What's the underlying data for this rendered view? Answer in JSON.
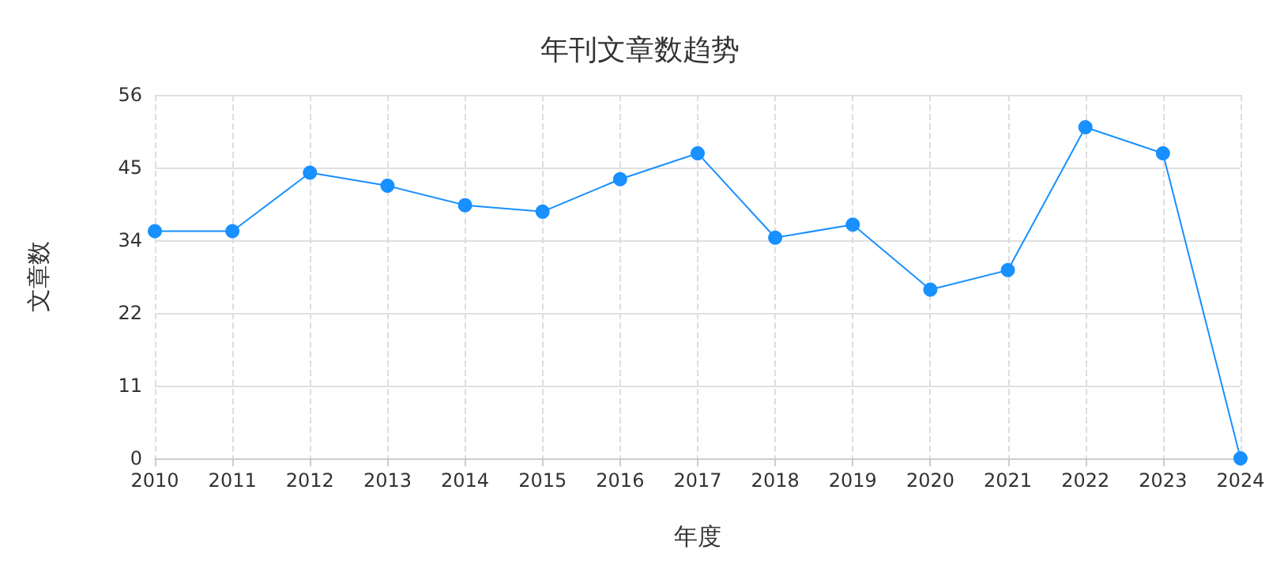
{
  "chart_data": {
    "type": "line",
    "title": "年刊文章数趋势",
    "xlabel": "年度",
    "ylabel": "文章数",
    "categories": [
      "2010",
      "2011",
      "2012",
      "2013",
      "2014",
      "2015",
      "2016",
      "2017",
      "2018",
      "2019",
      "2020",
      "2021",
      "2022",
      "2023",
      "2024"
    ],
    "series": [
      {
        "color": "#1890ff",
        "values": [
          35,
          35,
          44,
          42,
          39,
          38,
          43,
          47,
          34,
          36,
          26,
          29,
          51,
          47,
          0
        ]
      }
    ],
    "ylim": [
      0,
      56
    ],
    "yticks": [
      0,
      {
        "value": 11.2,
        "label": "11"
      },
      {
        "value": 22.4,
        "label": "22"
      },
      {
        "value": 33.6,
        "label": "34"
      },
      {
        "value": 44.8,
        "label": "45"
      },
      56
    ],
    "grid": true,
    "marker": "circle",
    "line_style": "solid"
  }
}
